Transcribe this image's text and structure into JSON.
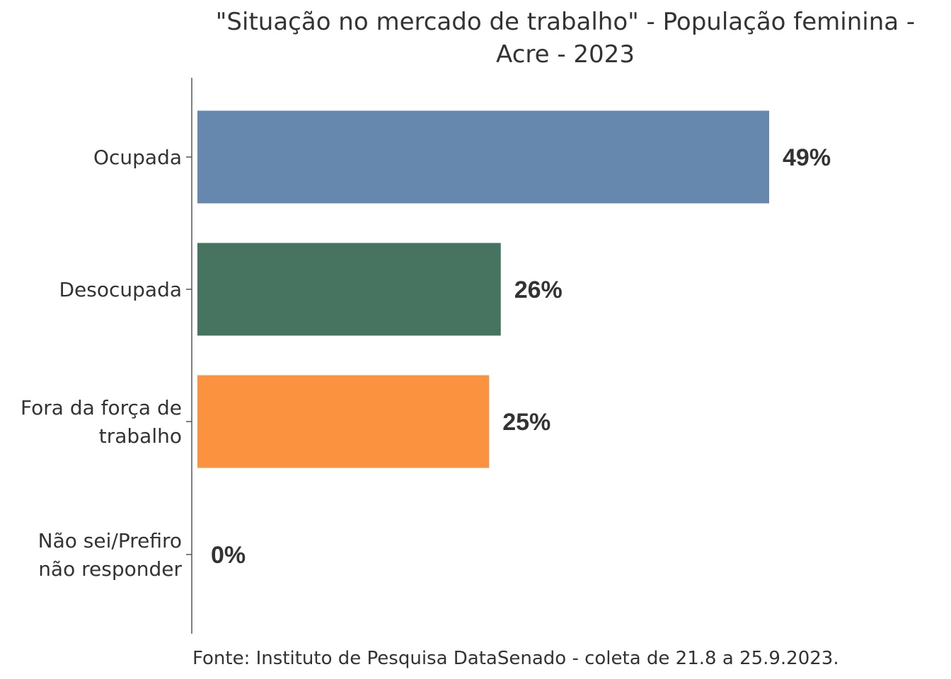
{
  "chart_data": {
    "type": "bar",
    "orientation": "horizontal",
    "title": "\"Situação no mercado de trabalho\" - População feminina - Acre - 2023",
    "title_lines": [
      "\"Situação no mercado de trabalho\" - População feminina -",
      "Acre - 2023"
    ],
    "categories": [
      "Ocupada",
      "Desocupada",
      "Fora da força de trabalho",
      "Não sei/Prefiro não responder"
    ],
    "category_lines": [
      [
        "Ocupada"
      ],
      [
        "Desocupada"
      ],
      [
        "Fora da força de",
        "trabalho"
      ],
      [
        "Não sei/Prefiro",
        "não responder"
      ]
    ],
    "values": [
      49,
      26,
      25,
      0
    ],
    "value_labels": [
      "49%",
      "26%",
      "25%",
      "0%"
    ],
    "unit": "%",
    "colors": [
      "#6688ae",
      "#467461",
      "#fa923f",
      "#cccccc"
    ],
    "xlim": [
      0,
      60
    ],
    "grid": false,
    "legend": "none"
  },
  "source": "Fonte: Instituto de Pesquisa DataSenado - coleta de 21.8 a 25.9.2023."
}
